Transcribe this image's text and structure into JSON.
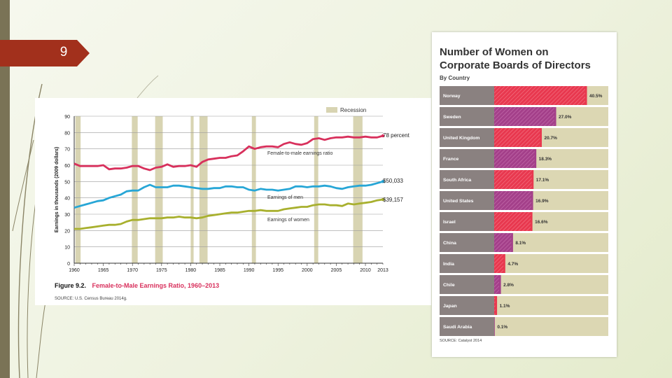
{
  "slide": {
    "number": "9"
  },
  "chart_data": [
    {
      "type": "line",
      "title_prefix": "Figure 9.2.",
      "title": "Female-to-Male Earnings Ratio, 1960–2013",
      "ylabel": "Earnings in thousands (2009 dollars)",
      "xlabel": "",
      "x_ticks": [
        1960,
        1965,
        1970,
        1975,
        1980,
        1985,
        1990,
        1995,
        2000,
        2005,
        2010,
        2013
      ],
      "y_ticks": [
        0,
        10,
        20,
        30,
        40,
        50,
        60,
        70,
        80,
        90
      ],
      "xlim": [
        1960,
        2013
      ],
      "ylim": [
        0,
        90
      ],
      "grid": true,
      "source": "SOURCE: U.S. Census Bureau 2014g.",
      "recession_label": "Recession",
      "recessions": [
        [
          1960.2,
          1961.1
        ],
        [
          1969.9,
          1970.9
        ],
        [
          1973.9,
          1975.2
        ],
        [
          1980.0,
          1980.5
        ],
        [
          1981.5,
          1982.9
        ],
        [
          1990.5,
          1991.2
        ],
        [
          2001.2,
          2001.9
        ],
        [
          2007.9,
          2009.5
        ]
      ],
      "series": [
        {
          "name": "Female-to-male earnings ratio",
          "label": "Female-to-male earnings ratio",
          "end_label": "78 percent",
          "color": "#d8305c",
          "x": [
            1960,
            1961,
            1962,
            1963,
            1964,
            1965,
            1966,
            1967,
            1968,
            1969,
            1970,
            1971,
            1972,
            1973,
            1974,
            1975,
            1976,
            1977,
            1978,
            1979,
            1980,
            1981,
            1982,
            1983,
            1984,
            1985,
            1986,
            1987,
            1988,
            1989,
            1990,
            1991,
            1992,
            1993,
            1994,
            1995,
            1996,
            1997,
            1998,
            1999,
            2000,
            2001,
            2002,
            2003,
            2004,
            2005,
            2006,
            2007,
            2008,
            2009,
            2010,
            2011,
            2012,
            2013
          ],
          "values": [
            61,
            59.5,
            59.5,
            59.5,
            59.5,
            60,
            57.5,
            58,
            58,
            58.5,
            59.5,
            59.5,
            58,
            57,
            58.5,
            59,
            60.5,
            59,
            59.5,
            59.5,
            60,
            59,
            62,
            63.5,
            64,
            64.5,
            64.5,
            65.5,
            66,
            68.5,
            71.5,
            70,
            71,
            71.5,
            71.5,
            71,
            73,
            74,
            73,
            72.5,
            73.5,
            76,
            76.5,
            75.5,
            76.5,
            77,
            77,
            77.5,
            77,
            77,
            77.5,
            77,
            77,
            78
          ]
        },
        {
          "name": "Earnings of men",
          "label": "Earnings of men",
          "end_label": "$50,033",
          "color": "#27a6d6",
          "x": [
            1960,
            1961,
            1962,
            1963,
            1964,
            1965,
            1966,
            1967,
            1968,
            1969,
            1970,
            1971,
            1972,
            1973,
            1974,
            1975,
            1976,
            1977,
            1978,
            1979,
            1980,
            1981,
            1982,
            1983,
            1984,
            1985,
            1986,
            1987,
            1988,
            1989,
            1990,
            1991,
            1992,
            1993,
            1994,
            1995,
            1996,
            1997,
            1998,
            1999,
            2000,
            2001,
            2002,
            2003,
            2004,
            2005,
            2006,
            2007,
            2008,
            2009,
            2010,
            2011,
            2012,
            2013
          ],
          "values": [
            34,
            35,
            36,
            37,
            38,
            38.5,
            40,
            41,
            42,
            44,
            44.5,
            44.5,
            46.5,
            48,
            46.5,
            46.5,
            46.5,
            47.5,
            47.5,
            47,
            46.5,
            46,
            45.5,
            45.5,
            46,
            46,
            47,
            47,
            46.5,
            46.5,
            45,
            44.5,
            45.5,
            45,
            45,
            44.5,
            45,
            45.5,
            47,
            47,
            46.5,
            47,
            47,
            47.5,
            47,
            46,
            45.5,
            46.5,
            47,
            47.5,
            47.5,
            48,
            49,
            50
          ]
        },
        {
          "name": "Earnings of women",
          "label": "Earnings of women",
          "end_label": "$39,157",
          "color": "#a8b02e",
          "x": [
            1960,
            1961,
            1962,
            1963,
            1964,
            1965,
            1966,
            1967,
            1968,
            1969,
            1970,
            1971,
            1972,
            1973,
            1974,
            1975,
            1976,
            1977,
            1978,
            1979,
            1980,
            1981,
            1982,
            1983,
            1984,
            1985,
            1986,
            1987,
            1988,
            1989,
            1990,
            1991,
            1992,
            1993,
            1994,
            1995,
            1996,
            1997,
            1998,
            1999,
            2000,
            2001,
            2002,
            2003,
            2004,
            2005,
            2006,
            2007,
            2008,
            2009,
            2010,
            2011,
            2012,
            2013
          ],
          "values": [
            21,
            21,
            21.5,
            22,
            22.5,
            23,
            23.5,
            23.5,
            24,
            25.5,
            26.5,
            26.5,
            27,
            27.5,
            27.5,
            27.5,
            28,
            28,
            28.5,
            28,
            28,
            27.5,
            28,
            29,
            29.5,
            30,
            30.5,
            31,
            31,
            31.5,
            32,
            32,
            32.5,
            32,
            32,
            32,
            33,
            33.5,
            34,
            34.5,
            34.5,
            35.5,
            36,
            36,
            35.5,
            35.5,
            35,
            36.5,
            36,
            36.5,
            37,
            37.5,
            38.5,
            39
          ]
        }
      ]
    },
    {
      "type": "bar",
      "title_line1": "Number of Women on",
      "title_line2": "Corporate Boards of Directors",
      "subtitle": "By Country",
      "source": "SOURCE: Catalyst 2014",
      "categories": [
        "Norway",
        "Sweden",
        "United Kingdom",
        "France",
        "South Africa",
        "United States",
        "Israel",
        "China",
        "India",
        "Chile",
        "Japan",
        "Saudi Arabia"
      ],
      "values": [
        40.5,
        27.0,
        20.7,
        18.3,
        17.1,
        16.9,
        16.6,
        8.1,
        4.7,
        2.8,
        1.1,
        0.1
      ],
      "value_labels": [
        "40.5%",
        "27.0%",
        "20.7%",
        "18.3%",
        "17.1%",
        "16.9%",
        "16.6%",
        "8.1%",
        "4.7%",
        "2.8%",
        "1.1%",
        "0.1%"
      ],
      "fill_styles": [
        "red",
        "purple",
        "red",
        "purple",
        "red",
        "purple",
        "red",
        "purple",
        "red",
        "purple",
        "red",
        "purple"
      ],
      "xlim": [
        0,
        50
      ],
      "colors": {
        "red": "#e8384f",
        "purple": "#a4408a",
        "label_bg": "#8a8180",
        "track": "#dcd7b3"
      }
    }
  ]
}
